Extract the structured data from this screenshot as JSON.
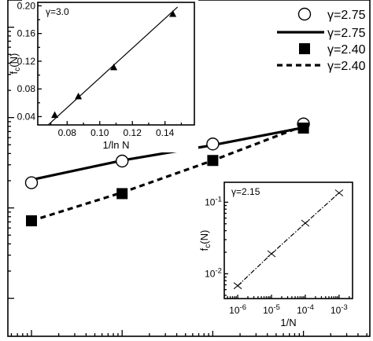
{
  "chart_data": [
    {
      "panel": "main",
      "type": "line",
      "xscale": "log",
      "yscale": "log",
      "x": [
        1e-06,
        1e-05,
        0.0001,
        0.001
      ],
      "series": [
        {
          "name": "γ=2.75",
          "kind": "markers",
          "marker": "open-circle",
          "values": [
            0.019,
            0.033,
            0.051,
            0.085
          ]
        },
        {
          "name": "γ=2.75",
          "kind": "line",
          "style": "solid",
          "values": [
            0.0205,
            0.0335,
            0.0495,
            0.0775
          ]
        },
        {
          "name": "γ=2.40",
          "kind": "markers",
          "marker": "filled-square",
          "values": [
            0.0072,
            0.0144,
            0.0335,
            0.0765
          ]
        },
        {
          "name": "γ=2.40",
          "kind": "line",
          "style": "dashed",
          "values": [
            0.0072,
            0.0148,
            0.0335,
            0.081
          ]
        }
      ],
      "legend": {
        "position": "top-right",
        "entries": [
          {
            "label": "γ=2.75",
            "symbol": "open-circle"
          },
          {
            "label": "γ=2.75",
            "symbol": "solid-line"
          },
          {
            "label": "γ=2.40",
            "symbol": "filled-square"
          },
          {
            "label": "γ=2.40",
            "symbol": "dashed-line"
          }
        ]
      }
    },
    {
      "panel": "inset-top-left",
      "type": "line",
      "annotation": "γ=3.0",
      "xlabel": "1/ln N",
      "ylabel": "f_c(N)",
      "xlim": [
        0.062,
        0.158
      ],
      "ylim": [
        0.028,
        0.205
      ],
      "xticks": [
        0.08,
        0.1,
        0.12,
        0.14
      ],
      "xticklabels": [
        "0.08",
        "0.10",
        "0.12",
        "0.14"
      ],
      "yticks": [
        0.04,
        0.08,
        0.12,
        0.16,
        0.2
      ],
      "yticklabels": [
        "0.04",
        "0.08",
        "0.12",
        "0.16",
        "0.20"
      ],
      "x": [
        0.0724,
        0.0869,
        0.1086,
        0.1448
      ],
      "series": [
        {
          "kind": "markers+line",
          "marker": "filled-triangle",
          "values": [
            0.042,
            0.069,
            0.111,
            0.188
          ]
        }
      ]
    },
    {
      "panel": "inset-bottom-right",
      "type": "line",
      "annotation": "γ=2.15",
      "xlabel": "1/N",
      "ylabel": "f_c(N)",
      "xscale": "log",
      "yscale": "log",
      "xlim": [
        4e-07,
        0.0025
      ],
      "ylim": [
        0.0045,
        0.19
      ],
      "xticks": [
        1e-06,
        1e-05,
        0.0001,
        0.001
      ],
      "xticklabels": [
        [
          "10",
          "-6"
        ],
        [
          "10",
          "-5"
        ],
        [
          "10",
          "-4"
        ],
        [
          "10",
          "-3"
        ]
      ],
      "yticks": [
        0.01,
        0.1
      ],
      "yticklabels": [
        [
          "10",
          "-2"
        ],
        [
          "10",
          "-1"
        ]
      ],
      "x": [
        1e-06,
        1e-05,
        0.0001,
        0.001
      ],
      "series": [
        {
          "kind": "markers+line",
          "marker": "cross",
          "style": "dash-dot",
          "values": [
            0.0068,
            0.019,
            0.051,
            0.135
          ]
        }
      ]
    }
  ]
}
